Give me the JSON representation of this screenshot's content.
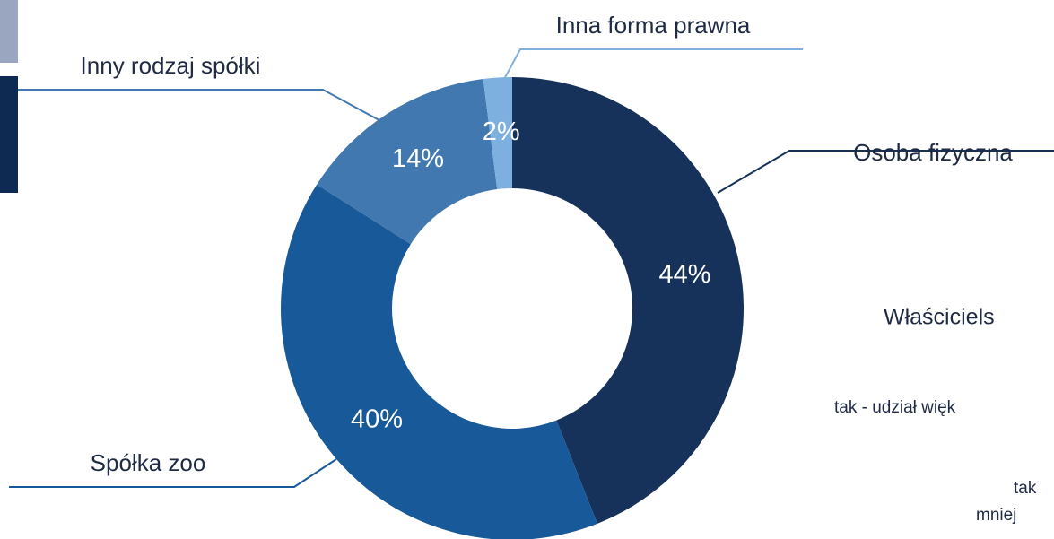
{
  "chart_data": {
    "type": "donut",
    "categories": [
      "Osoba fizyczna",
      "Spółka zoo",
      "Inny rodzaj spółki",
      "Inna forma prawna"
    ],
    "values": [
      44,
      40,
      14,
      2
    ],
    "value_labels": [
      "44%",
      "40%",
      "14%",
      "2%"
    ],
    "colors": [
      "#17325a",
      "#175999",
      "#4178b0",
      "#7eb0df"
    ]
  },
  "side_panel": {
    "title": "Właściciels",
    "items": [
      "tak - udział więk",
      "tak",
      "mniej"
    ]
  }
}
